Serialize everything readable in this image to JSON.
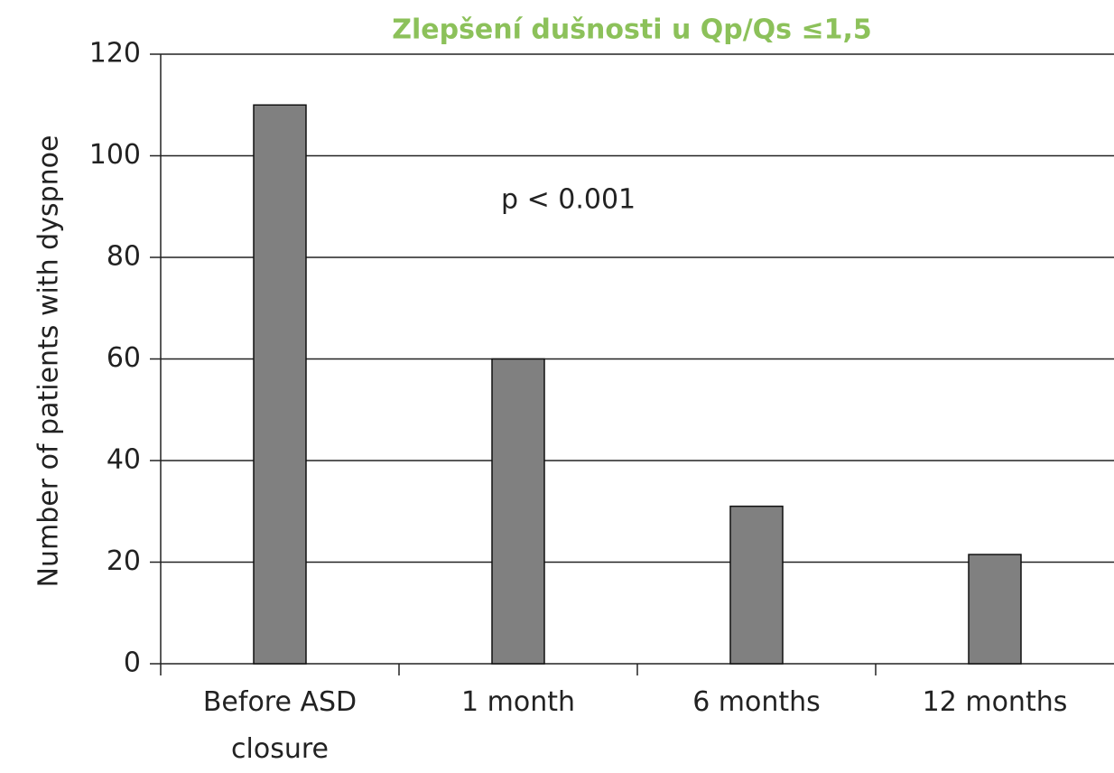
{
  "chart_data": {
    "type": "bar",
    "title": "Zlepšení dušnosti u Qp/Qs ≤1,5",
    "y_label": "Number of patients with dyspnoe",
    "annotation": "p < 0.001",
    "categories": [
      "Before ASD closure",
      "1 month",
      "6 months",
      "12 months"
    ],
    "values": [
      110,
      60,
      31,
      21.5
    ],
    "color": "#808080",
    "ylim": [
      0,
      120
    ],
    "yticks": [
      0,
      20,
      40,
      60,
      80,
      100,
      120
    ],
    "grid": true
  }
}
